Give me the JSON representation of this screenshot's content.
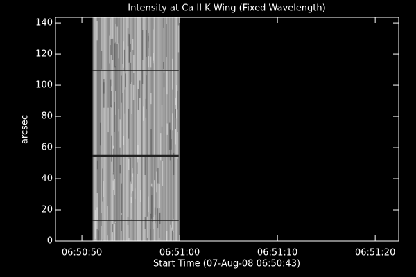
{
  "chart_data": {
    "type": "image",
    "title": "Intensity at Ca II K Wing (Fixed Wavelength)",
    "x_label": "Start Time (07-Aug-08 06:50:43)",
    "y_label": "arcsec",
    "xlim": [
      4.3,
      39.4
    ],
    "xticks": [
      {
        "value": 7,
        "label": "06:50:50"
      },
      {
        "value": 17,
        "label": "06:51:00"
      },
      {
        "value": 27,
        "label": "06:51:10"
      },
      {
        "value": 37,
        "label": "06:51:20"
      }
    ],
    "ylim": [
      0,
      143.6
    ],
    "yticks": [
      0,
      20,
      40,
      60,
      80,
      100,
      120,
      140
    ],
    "image_xlim": [
      8.1,
      16.9
    ],
    "background": "#000000",
    "axis_color": "#ffffff"
  }
}
